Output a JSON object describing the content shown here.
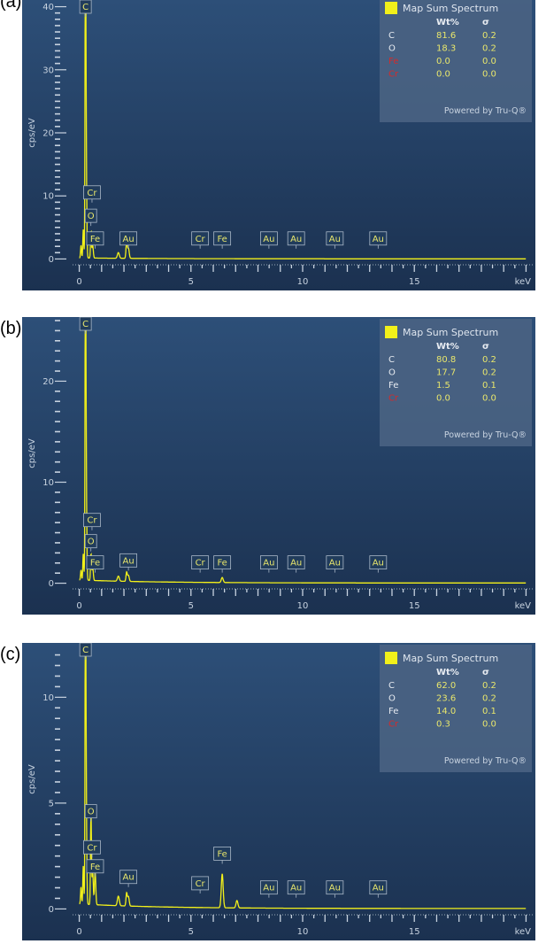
{
  "colors": {
    "spectrum": "#f2f01a",
    "plot_bg_top": "#2d4f78",
    "plot_bg_bottom": "#1b3150",
    "legend_bg": "#4a6383",
    "element_normal": "#e8ecf2",
    "element_red": "#d42b2b",
    "value": "#e8e66c"
  },
  "chart_data": [
    {
      "type": "line",
      "panel_label": "(a)",
      "xlabel": "keV",
      "ylabel": "cps/eV",
      "xlim": [
        -0.3,
        20.3
      ],
      "ylim": [
        -0.5,
        40.5
      ],
      "x_ticks": [
        0,
        5,
        10,
        15
      ],
      "y_ticks": [
        0,
        10,
        20,
        30,
        40
      ],
      "y_minor_step": 1,
      "legend": {
        "title": "Map Sum Spectrum",
        "headers": [
          "Wt%",
          "σ"
        ],
        "rows": [
          {
            "element": "C",
            "wt": "81.6",
            "sigma": "0.2",
            "highlight": false
          },
          {
            "element": "O",
            "wt": "18.3",
            "sigma": "0.2",
            "highlight": false
          },
          {
            "element": "Fe",
            "wt": "0.0",
            "sigma": "0.0",
            "highlight": true
          },
          {
            "element": "Cr",
            "wt": "0.0",
            "sigma": "0.0",
            "highlight": true
          }
        ],
        "footer": "Powered by Tru-Q®"
      },
      "peak_labels": [
        {
          "label": "C",
          "x": 0.28,
          "y": 41
        },
        {
          "label": "Cr",
          "x": 0.57,
          "y": 9.5
        },
        {
          "label": "O",
          "x": 0.52,
          "y": 5.8
        },
        {
          "label": "Fe",
          "x": 0.71,
          "y": 2.2
        },
        {
          "label": "Au",
          "x": 2.2,
          "y": 2.2
        },
        {
          "label": "Cr",
          "x": 5.41,
          "y": 2.2
        },
        {
          "label": "Fe",
          "x": 6.4,
          "y": 2.2
        },
        {
          "label": "Au",
          "x": 8.49,
          "y": 2.2
        },
        {
          "label": "Au",
          "x": 9.71,
          "y": 2.2
        },
        {
          "label": "Au",
          "x": 11.44,
          "y": 2.2
        },
        {
          "label": "Au",
          "x": 13.38,
          "y": 2.2
        }
      ],
      "series": [
        {
          "peaks": [
            {
              "x": 0.08,
              "y": 2.0,
              "w": 0.03
            },
            {
              "x": 0.18,
              "y": 4.5,
              "w": 0.03
            },
            {
              "x": 0.277,
              "y": 45,
              "w": 0.025
            },
            {
              "x": 0.3,
              "y": 20,
              "w": 0.04
            },
            {
              "x": 0.525,
              "y": 4.2,
              "w": 0.03
            },
            {
              "x": 0.6,
              "y": 2.0,
              "w": 0.04
            },
            {
              "x": 1.75,
              "y": 0.9,
              "w": 0.06
            },
            {
              "x": 2.12,
              "y": 2.6,
              "w": 0.04
            },
            {
              "x": 2.2,
              "y": 1.6,
              "w": 0.05
            }
          ],
          "background": 0.15
        }
      ]
    },
    {
      "type": "line",
      "panel_label": "(b)",
      "xlabel": "keV",
      "ylabel": "cps/eV",
      "xlim": [
        -0.3,
        20.3
      ],
      "ylim": [
        -0.3,
        26.0
      ],
      "x_ticks": [
        0,
        5,
        10,
        15
      ],
      "y_ticks": [
        0,
        10,
        20
      ],
      "y_minor_step": 1,
      "legend": {
        "title": "Map Sum Spectrum",
        "headers": [
          "Wt%",
          "σ"
        ],
        "rows": [
          {
            "element": "C",
            "wt": "80.8",
            "sigma": "0.2",
            "highlight": false
          },
          {
            "element": "O",
            "wt": "17.7",
            "sigma": "0.2",
            "highlight": false
          },
          {
            "element": "Fe",
            "wt": "1.5",
            "sigma": "0.1",
            "highlight": false
          },
          {
            "element": "Cr",
            "wt": "0.0",
            "sigma": "0.0",
            "highlight": true
          }
        ],
        "footer": "Powered by Tru-Q®"
      },
      "peak_labels": [
        {
          "label": "C",
          "x": 0.28,
          "y": 25.5
        },
        {
          "label": "Cr",
          "x": 0.57,
          "y": 5.6
        },
        {
          "label": "O",
          "x": 0.52,
          "y": 3.5
        },
        {
          "label": "Fe",
          "x": 0.71,
          "y": 1.4
        },
        {
          "label": "Au",
          "x": 2.2,
          "y": 1.6
        },
        {
          "label": "Cr",
          "x": 5.41,
          "y": 1.4
        },
        {
          "label": "Fe",
          "x": 6.4,
          "y": 1.4
        },
        {
          "label": "Au",
          "x": 8.49,
          "y": 1.4
        },
        {
          "label": "Au",
          "x": 9.71,
          "y": 1.4
        },
        {
          "label": "Au",
          "x": 11.44,
          "y": 1.4
        },
        {
          "label": "Au",
          "x": 13.38,
          "y": 1.4
        }
      ],
      "series": [
        {
          "peaks": [
            {
              "x": 0.08,
              "y": 1.0,
              "w": 0.03
            },
            {
              "x": 0.18,
              "y": 2.6,
              "w": 0.03
            },
            {
              "x": 0.277,
              "y": 28,
              "w": 0.025
            },
            {
              "x": 0.3,
              "y": 13,
              "w": 0.04
            },
            {
              "x": 0.525,
              "y": 2.6,
              "w": 0.03
            },
            {
              "x": 0.6,
              "y": 1.3,
              "w": 0.04
            },
            {
              "x": 1.75,
              "y": 0.5,
              "w": 0.06
            },
            {
              "x": 2.12,
              "y": 0.9,
              "w": 0.04
            },
            {
              "x": 2.2,
              "y": 0.6,
              "w": 0.05
            },
            {
              "x": 6.4,
              "y": 0.5,
              "w": 0.06
            }
          ],
          "background": 0.3
        }
      ]
    },
    {
      "type": "line",
      "panel_label": "(c)",
      "xlabel": "keV",
      "ylabel": "cps/eV",
      "xlim": [
        -0.3,
        20.3
      ],
      "ylim": [
        -0.15,
        12.4
      ],
      "x_ticks": [
        0,
        5,
        10,
        15
      ],
      "y_ticks": [
        0,
        5,
        10
      ],
      "y_minor_step": 0.5,
      "legend": {
        "title": "Map Sum Spectrum",
        "headers": [
          "Wt%",
          "σ"
        ],
        "rows": [
          {
            "element": "C",
            "wt": "62.0",
            "sigma": "0.2",
            "highlight": false
          },
          {
            "element": "O",
            "wt": "23.6",
            "sigma": "0.2",
            "highlight": false
          },
          {
            "element": "Fe",
            "wt": "14.0",
            "sigma": "0.1",
            "highlight": false
          },
          {
            "element": "Cr",
            "wt": "0.3",
            "sigma": "0.0",
            "highlight": true
          }
        ],
        "footer": "Powered by Tru-Q®"
      },
      "peak_labels": [
        {
          "label": "C",
          "x": 0.28,
          "y": 12.0
        },
        {
          "label": "O",
          "x": 0.52,
          "y": 4.3
        },
        {
          "label": "Cr",
          "x": 0.57,
          "y": 2.6
        },
        {
          "label": "Fe",
          "x": 0.71,
          "y": 1.7
        },
        {
          "label": "Au",
          "x": 2.2,
          "y": 1.2
        },
        {
          "label": "Cr",
          "x": 5.41,
          "y": 0.9
        },
        {
          "label": "Fe",
          "x": 6.4,
          "y": 2.3
        },
        {
          "label": "Au",
          "x": 8.49,
          "y": 0.7
        },
        {
          "label": "Au",
          "x": 9.71,
          "y": 0.7
        },
        {
          "label": "Au",
          "x": 11.44,
          "y": 0.7
        },
        {
          "label": "Au",
          "x": 13.38,
          "y": 0.7
        }
      ],
      "series": [
        {
          "peaks": [
            {
              "x": 0.08,
              "y": 0.8,
              "w": 0.03
            },
            {
              "x": 0.18,
              "y": 1.8,
              "w": 0.03
            },
            {
              "x": 0.277,
              "y": 13,
              "w": 0.025
            },
            {
              "x": 0.3,
              "y": 6.2,
              "w": 0.04
            },
            {
              "x": 0.525,
              "y": 4.2,
              "w": 0.03
            },
            {
              "x": 0.6,
              "y": 1.5,
              "w": 0.04
            },
            {
              "x": 0.71,
              "y": 1.6,
              "w": 0.04
            },
            {
              "x": 1.75,
              "y": 0.45,
              "w": 0.06
            },
            {
              "x": 2.12,
              "y": 0.6,
              "w": 0.04
            },
            {
              "x": 2.2,
              "y": 0.45,
              "w": 0.05
            },
            {
              "x": 6.4,
              "y": 1.6,
              "w": 0.06
            },
            {
              "x": 7.06,
              "y": 0.35,
              "w": 0.06
            }
          ],
          "background": 0.22
        }
      ]
    }
  ]
}
